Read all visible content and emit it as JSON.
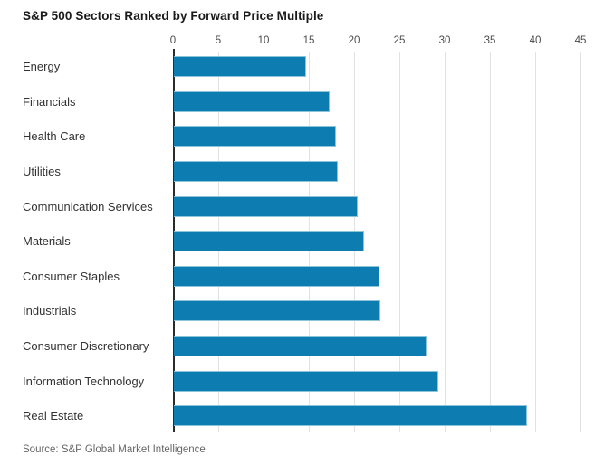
{
  "title": "S&P 500 Sectors Ranked by Forward Price Multiple",
  "source": "Source: S&P Global Market Intelligence",
  "colors": {
    "bar": "#0d7cb1",
    "bar_border": "#8ec4da",
    "axis": "#2b2b2b",
    "grid": "#e2e2e2",
    "title": "#1a1a1a",
    "category_label": "#333333",
    "tick_label": "#4a4a4a",
    "source": "#666666",
    "background": "#ffffff"
  },
  "chart_data": {
    "type": "bar",
    "orientation": "horizontal",
    "title": "S&P 500 Sectors Ranked by Forward Price Multiple",
    "categories": [
      "Energy",
      "Financials",
      "Health Care",
      "Utilities",
      "Communication Services",
      "Materials",
      "Consumer Staples",
      "Industrials",
      "Consumer Discretionary",
      "Information Technology",
      "Real Estate"
    ],
    "values": [
      14.6,
      17.2,
      17.9,
      18.1,
      20.3,
      21.0,
      22.7,
      22.8,
      27.9,
      29.2,
      39.0
    ],
    "xlabel": "",
    "ylabel": "",
    "xlim": [
      0,
      45
    ],
    "xticks": [
      0,
      5,
      10,
      15,
      20,
      25,
      30,
      35,
      40,
      45
    ],
    "tick_position": "top",
    "grid": "vertical",
    "legend": "none",
    "source": "Source: S&P Global Market Intelligence"
  }
}
